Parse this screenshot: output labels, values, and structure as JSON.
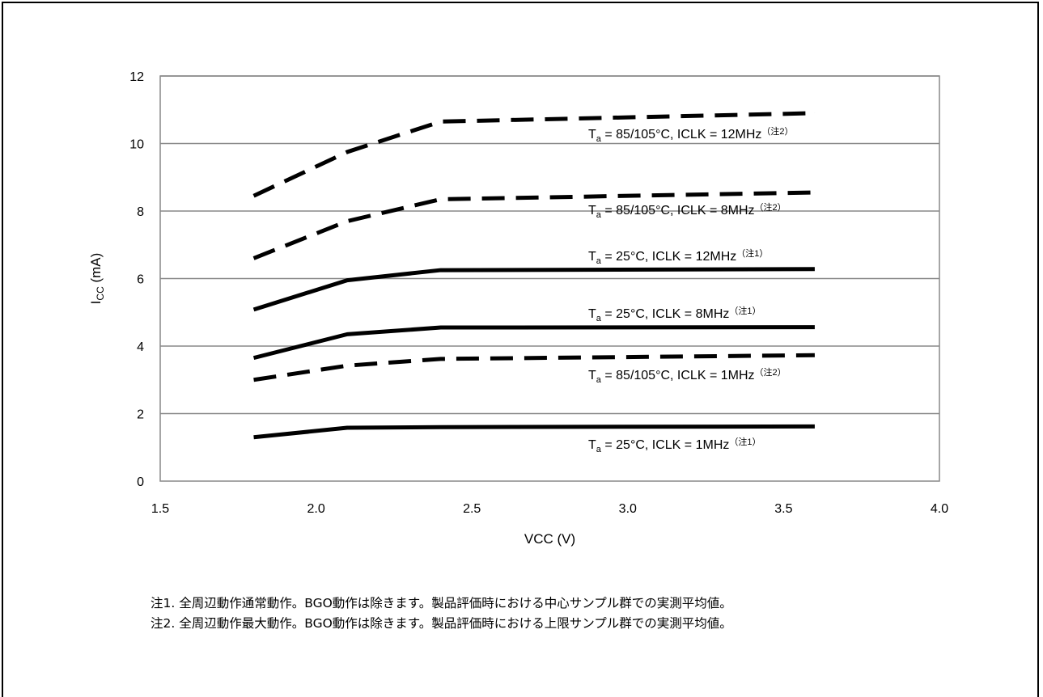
{
  "chart_data": {
    "type": "line",
    "title": "",
    "xlabel": "VCC (V)",
    "ylabel_main": "I",
    "ylabel_sub": "CC",
    "ylabel_unit": " (mA)",
    "xlim": [
      1.5,
      4.0
    ],
    "ylim": [
      0,
      12
    ],
    "x_ticks": [
      "1.5",
      "2.0",
      "2.5",
      "3.0",
      "3.5",
      "4.0"
    ],
    "y_ticks": [
      "0",
      "2",
      "4",
      "6",
      "8",
      "10",
      "12"
    ],
    "grid": "horizontal",
    "x": [
      1.8,
      2.1,
      2.4,
      3.6
    ],
    "series": [
      {
        "style": "dashed",
        "values": [
          8.45,
          9.75,
          10.65,
          10.9
        ],
        "label": {
          "t": "T",
          "sub": "a",
          "rest": " = 85/105°C, ICLK = 12MHz",
          "note": "（注2）"
        }
      },
      {
        "style": "dashed",
        "values": [
          6.6,
          7.7,
          8.35,
          8.55
        ],
        "label": {
          "t": "T",
          "sub": "a",
          "rest": " = 85/105°C, ICLK = 8MHz",
          "note": "（注2）"
        }
      },
      {
        "style": "solid",
        "values": [
          5.08,
          5.95,
          6.25,
          6.28
        ],
        "label": {
          "t": "T",
          "sub": "a",
          "rest": " = 25°C, ICLK = 12MHz",
          "note": "（注1）"
        }
      },
      {
        "style": "solid",
        "values": [
          3.65,
          4.35,
          4.55,
          4.56
        ],
        "label": {
          "t": "T",
          "sub": "a",
          "rest": " = 25°C, ICLK = 8MHz",
          "note": "（注1）"
        }
      },
      {
        "style": "dashed",
        "values": [
          3.0,
          3.42,
          3.62,
          3.73
        ],
        "label": {
          "t": "T",
          "sub": "a",
          "rest": " = 85/105°C, ICLK = 1MHz",
          "note": "（注2）"
        }
      },
      {
        "style": "solid",
        "values": [
          1.3,
          1.58,
          1.6,
          1.62
        ],
        "label": {
          "t": "T",
          "sub": "a",
          "rest": " = 25°C, ICLK = 1MHz",
          "note": "（注1）"
        }
      }
    ],
    "colors": {
      "line": "#000000",
      "grid": "#888888",
      "axis": "#888888"
    }
  },
  "notes": [
    "注1.  全周辺動作通常動作。BGO動作は除きます。製品評価時における中心サンプル群での実測平均値。",
    "注2.  全周辺動作最大動作。BGO動作は除きます。製品評価時における上限サンプル群での実測平均値。"
  ]
}
